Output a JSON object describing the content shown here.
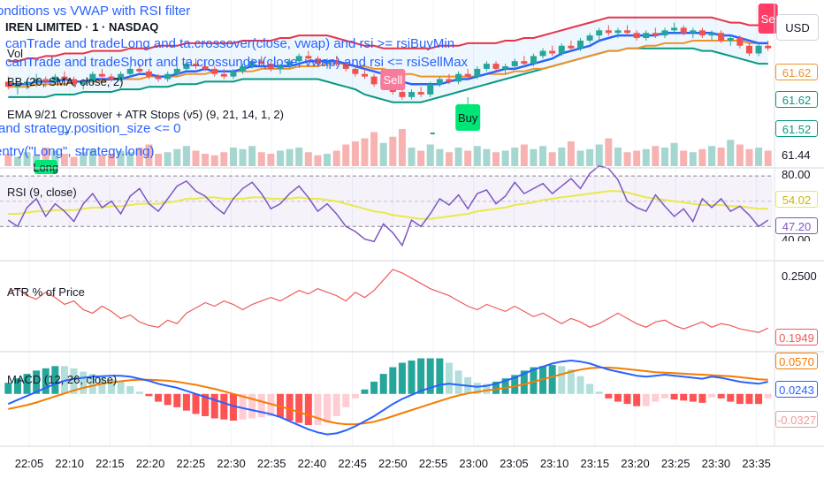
{
  "symbol_title": "IREN LIMITED · 1 · NASDAQ",
  "vol_label": "Vol",
  "currency": "USD",
  "overlay_lines": [
    "onditions vs VWAP with RSI filter",
    "canTrade and tradeLong  and ta.crossover(close, vwap) and rsi >= rsiBuyMin",
    "canTrade and tradeShort and ta.crossunder(close, vwap) and rsi <= rsiSellMax",
    "and strategy.position_size <= 0",
    "entry(\"Long\", strategy.long)"
  ],
  "indicators": {
    "bb": "BB (20, SMA, close, 2)",
    "ema": "EMA 9/21 Crossover + ATR Stops (v5) (9, 21, 14, 1, 2)",
    "rsi": "RSI (9, close)",
    "atr": "ATR % of Price",
    "macd": "MACD (12, 26, close)"
  },
  "signals": {
    "buy": "Buy",
    "sell1": "Sell",
    "sell2": "Se",
    "long": "Long"
  },
  "colors": {
    "bb_upper": "#e5344a",
    "bb_lower": "#089981",
    "bb_basis": "#2962ff",
    "ema_slow": "#f09228",
    "up": "#26a69a",
    "down": "#ef5350",
    "rsi": "#7e57c2",
    "rsi_ma": "#e8ea4c",
    "atr": "#f05a5a",
    "macd": "#2962ff",
    "signal": "#f57c00"
  },
  "price_panel": {
    "range": [
      61.4,
      61.82
    ],
    "labels": [
      "61.62",
      "61.62",
      "61.52",
      "61.44"
    ],
    "label_colors": [
      "#f09228",
      "#089981",
      "#089981",
      "#131722"
    ],
    "candles": [
      [
        61.55,
        61.57,
        61.52,
        61.53
      ],
      [
        61.53,
        61.55,
        61.5,
        61.54
      ],
      [
        61.54,
        61.56,
        61.52,
        61.55
      ],
      [
        61.55,
        61.58,
        61.53,
        61.56
      ],
      [
        61.56,
        61.57,
        61.53,
        61.55
      ],
      [
        61.55,
        61.58,
        61.54,
        61.57
      ],
      [
        61.57,
        61.59,
        61.55,
        61.56
      ],
      [
        61.56,
        61.57,
        61.53,
        61.54
      ],
      [
        61.54,
        61.56,
        61.52,
        61.55
      ],
      [
        61.55,
        61.59,
        61.54,
        61.58
      ],
      [
        61.58,
        61.6,
        61.56,
        61.57
      ],
      [
        61.57,
        61.58,
        61.55,
        61.56
      ],
      [
        61.56,
        61.59,
        61.55,
        61.58
      ],
      [
        61.58,
        61.61,
        61.57,
        61.6
      ],
      [
        61.6,
        61.62,
        61.58,
        61.59
      ],
      [
        61.59,
        61.6,
        61.56,
        61.57
      ],
      [
        61.57,
        61.58,
        61.55,
        61.56
      ],
      [
        61.56,
        61.59,
        61.55,
        61.58
      ],
      [
        61.58,
        61.61,
        61.57,
        61.6
      ],
      [
        61.6,
        61.63,
        61.59,
        61.62
      ],
      [
        61.62,
        61.64,
        61.6,
        61.61
      ],
      [
        61.61,
        61.63,
        61.59,
        61.6
      ],
      [
        61.6,
        61.61,
        61.57,
        61.58
      ],
      [
        61.58,
        61.6,
        61.56,
        61.57
      ],
      [
        61.57,
        61.6,
        61.56,
        61.59
      ],
      [
        61.59,
        61.62,
        61.58,
        61.61
      ],
      [
        61.61,
        61.64,
        61.6,
        61.63
      ],
      [
        61.63,
        61.65,
        61.61,
        61.62
      ],
      [
        61.62,
        61.63,
        61.59,
        61.6
      ],
      [
        61.6,
        61.62,
        61.58,
        61.61
      ],
      [
        61.61,
        61.64,
        61.6,
        61.63
      ],
      [
        61.63,
        61.66,
        61.62,
        61.65
      ],
      [
        61.65,
        61.67,
        61.63,
        61.64
      ],
      [
        61.64,
        61.65,
        61.61,
        61.62
      ],
      [
        61.62,
        61.64,
        61.6,
        61.63
      ],
      [
        61.63,
        61.65,
        61.61,
        61.62
      ],
      [
        61.62,
        61.63,
        61.59,
        61.6
      ],
      [
        61.6,
        61.61,
        61.57,
        61.58
      ],
      [
        61.58,
        61.6,
        61.56,
        61.57
      ],
      [
        61.57,
        61.58,
        61.53,
        61.54
      ],
      [
        61.54,
        61.56,
        61.52,
        61.55
      ],
      [
        61.55,
        61.56,
        61.5,
        61.51
      ],
      [
        61.51,
        61.53,
        61.48,
        61.49
      ],
      [
        61.49,
        61.52,
        61.48,
        61.51
      ],
      [
        61.51,
        61.53,
        61.49,
        61.5
      ],
      [
        61.5,
        61.55,
        61.49,
        61.54
      ],
      [
        61.54,
        61.57,
        61.53,
        61.56
      ],
      [
        61.56,
        61.58,
        61.54,
        61.55
      ],
      [
        61.55,
        61.59,
        61.54,
        61.58
      ],
      [
        61.58,
        61.6,
        61.56,
        61.57
      ],
      [
        61.57,
        61.61,
        61.56,
        61.6
      ],
      [
        61.6,
        61.63,
        61.59,
        61.62
      ],
      [
        61.62,
        61.63,
        61.59,
        61.6
      ],
      [
        61.6,
        61.62,
        61.58,
        61.61
      ],
      [
        61.61,
        61.64,
        61.6,
        61.63
      ],
      [
        61.63,
        61.65,
        61.61,
        61.62
      ],
      [
        61.62,
        61.66,
        61.61,
        61.65
      ],
      [
        61.65,
        61.68,
        61.64,
        61.67
      ],
      [
        61.67,
        61.69,
        61.65,
        61.66
      ],
      [
        61.66,
        61.7,
        61.65,
        61.69
      ],
      [
        61.69,
        61.71,
        61.67,
        61.68
      ],
      [
        61.68,
        61.72,
        61.67,
        61.71
      ],
      [
        61.71,
        61.74,
        61.7,
        61.73
      ],
      [
        61.73,
        61.76,
        61.71,
        61.75
      ],
      [
        61.75,
        61.77,
        61.73,
        61.74
      ],
      [
        61.74,
        61.76,
        61.72,
        61.75
      ],
      [
        61.75,
        61.77,
        61.73,
        61.74
      ],
      [
        61.74,
        61.75,
        61.71,
        61.72
      ],
      [
        61.72,
        61.75,
        61.71,
        61.74
      ],
      [
        61.74,
        61.76,
        61.72,
        61.73
      ],
      [
        61.73,
        61.76,
        61.72,
        61.75
      ],
      [
        61.75,
        61.78,
        61.74,
        61.76
      ],
      [
        61.76,
        61.77,
        61.73,
        61.74
      ],
      [
        61.74,
        61.76,
        61.72,
        61.75
      ],
      [
        61.75,
        61.76,
        61.72,
        61.73
      ],
      [
        61.73,
        61.75,
        61.71,
        61.74
      ],
      [
        61.74,
        61.75,
        61.7,
        61.71
      ],
      [
        61.71,
        61.73,
        61.69,
        61.72
      ],
      [
        61.72,
        61.73,
        61.68,
        61.69
      ],
      [
        61.69,
        61.7,
        61.65,
        61.66
      ],
      [
        61.66,
        61.7,
        61.65,
        61.69
      ],
      [
        61.69,
        61.71,
        61.67,
        61.68
      ]
    ],
    "bb_upper": [
      61.63,
      61.63,
      61.64,
      61.64,
      61.65,
      61.65,
      61.66,
      61.66,
      61.66,
      61.67,
      61.67,
      61.67,
      61.67,
      61.68,
      61.68,
      61.68,
      61.69,
      61.69,
      61.69,
      61.7,
      61.7,
      61.7,
      61.7,
      61.7,
      61.7,
      61.71,
      61.71,
      61.71,
      61.71,
      61.72,
      61.72,
      61.73,
      61.73,
      61.73,
      61.73,
      61.72,
      61.71,
      61.7,
      61.69,
      61.69,
      61.68,
      61.68,
      61.68,
      61.68,
      61.68,
      61.68,
      61.69,
      61.69,
      61.69,
      61.7,
      61.7,
      61.7,
      61.7,
      61.71,
      61.71,
      61.72,
      61.72,
      61.73,
      61.74,
      61.75,
      61.76,
      61.77,
      61.78,
      61.79,
      61.8,
      61.8,
      61.8,
      61.8,
      61.8,
      61.8,
      61.8,
      61.8,
      61.8,
      61.8,
      61.8,
      61.8,
      61.79,
      61.78,
      61.78,
      61.77,
      61.77,
      61.77
    ],
    "bb_lower": [
      61.49,
      61.49,
      61.49,
      61.49,
      61.49,
      61.5,
      61.5,
      61.5,
      61.51,
      61.51,
      61.51,
      61.51,
      61.52,
      61.52,
      61.52,
      61.53,
      61.53,
      61.53,
      61.54,
      61.54,
      61.54,
      61.55,
      61.55,
      61.55,
      61.55,
      61.56,
      61.56,
      61.56,
      61.56,
      61.56,
      61.56,
      61.56,
      61.56,
      61.56,
      61.55,
      61.54,
      61.53,
      61.52,
      61.5,
      61.49,
      61.48,
      61.47,
      61.47,
      61.47,
      61.47,
      61.48,
      61.49,
      61.5,
      61.51,
      61.52,
      61.53,
      61.54,
      61.55,
      61.56,
      61.57,
      61.58,
      61.59,
      61.6,
      61.61,
      61.62,
      61.63,
      61.64,
      61.65,
      61.66,
      61.67,
      61.67,
      61.68,
      61.68,
      61.68,
      61.68,
      61.68,
      61.68,
      61.68,
      61.68,
      61.67,
      61.67,
      61.66,
      61.65,
      61.64,
      61.63,
      61.62,
      61.62
    ],
    "ema_fast": [
      61.54,
      61.54,
      61.54,
      61.55,
      61.55,
      61.55,
      61.56,
      61.55,
      61.55,
      61.56,
      61.56,
      61.56,
      61.56,
      61.57,
      61.58,
      61.58,
      61.57,
      61.57,
      61.58,
      61.59,
      61.59,
      61.6,
      61.59,
      61.59,
      61.59,
      61.6,
      61.61,
      61.61,
      61.61,
      61.61,
      61.61,
      61.62,
      61.63,
      61.63,
      61.63,
      61.63,
      61.62,
      61.61,
      61.6,
      61.59,
      61.58,
      61.57,
      61.55,
      61.54,
      61.54,
      61.54,
      61.54,
      61.55,
      61.56,
      61.56,
      61.57,
      61.58,
      61.59,
      61.6,
      61.6,
      61.61,
      61.62,
      61.63,
      61.64,
      61.66,
      61.67,
      61.68,
      61.69,
      61.71,
      61.72,
      61.73,
      61.73,
      61.73,
      61.73,
      61.73,
      61.74,
      61.74,
      61.74,
      61.74,
      61.74,
      61.74,
      61.73,
      61.73,
      61.72,
      61.71,
      61.7,
      61.7
    ],
    "ema_slow": [
      61.53,
      61.53,
      61.53,
      61.54,
      61.54,
      61.54,
      61.54,
      61.55,
      61.55,
      61.55,
      61.55,
      61.56,
      61.56,
      61.56,
      61.56,
      61.57,
      61.57,
      61.57,
      61.57,
      61.58,
      61.58,
      61.58,
      61.59,
      61.59,
      61.59,
      61.59,
      61.59,
      61.6,
      61.6,
      61.6,
      61.6,
      61.61,
      61.61,
      61.61,
      61.62,
      61.62,
      61.62,
      61.61,
      61.61,
      61.6,
      61.6,
      61.59,
      61.58,
      61.58,
      61.57,
      61.57,
      61.57,
      61.57,
      61.57,
      61.57,
      61.57,
      61.58,
      61.58,
      61.58,
      61.59,
      61.59,
      61.6,
      61.6,
      61.61,
      61.62,
      61.63,
      61.64,
      61.65,
      61.66,
      61.67,
      61.67,
      61.68,
      61.68,
      61.69,
      61.69,
      61.7,
      61.7,
      61.7,
      61.71,
      61.71,
      61.71,
      61.71,
      61.71,
      61.71,
      61.7,
      61.7,
      61.7
    ],
    "volumes": [
      8,
      6,
      9,
      7,
      12,
      10,
      8,
      6,
      9,
      11,
      7,
      8,
      10,
      9,
      12,
      14,
      8,
      9,
      11,
      13,
      10,
      8,
      7,
      9,
      12,
      11,
      13,
      9,
      8,
      10,
      11,
      12,
      9,
      7,
      8,
      10,
      14,
      16,
      18,
      22,
      15,
      19,
      24,
      12,
      10,
      14,
      11,
      9,
      12,
      10,
      13,
      11,
      9,
      10,
      12,
      14,
      11,
      13,
      9,
      12,
      16,
      10,
      11,
      14,
      18,
      12,
      9,
      10,
      11,
      13,
      12,
      15,
      10,
      9,
      11,
      13,
      12,
      17,
      14,
      11,
      12,
      10
    ]
  },
  "rsi_panel": {
    "range": [
      15,
      85
    ],
    "upper_label": "80.00",
    "lower_label": "40.00",
    "levels": [
      "54.02",
      "47.20"
    ],
    "values": [
      45,
      40,
      55,
      62,
      48,
      58,
      52,
      44,
      58,
      66,
      55,
      60,
      50,
      64,
      70,
      58,
      52,
      62,
      72,
      76,
      68,
      64,
      56,
      50,
      62,
      70,
      75,
      66,
      54,
      58,
      66,
      72,
      63,
      52,
      58,
      50,
      40,
      36,
      30,
      28,
      42,
      35,
      25,
      45,
      40,
      50,
      62,
      57,
      65,
      54,
      66,
      69,
      58,
      64,
      75,
      66,
      70,
      74,
      66,
      72,
      78,
      70,
      82,
      88,
      86,
      77,
      60,
      55,
      52,
      65,
      56,
      48,
      54,
      44,
      62,
      55,
      62,
      52,
      56,
      49,
      40,
      45
    ],
    "ma": [
      50,
      50,
      51,
      52,
      52,
      53,
      53,
      53,
      54,
      55,
      55,
      56,
      56,
      57,
      58,
      58,
      58,
      59,
      60,
      62,
      62,
      63,
      63,
      62,
      62,
      62,
      63,
      63,
      62,
      62,
      62,
      63,
      62,
      62,
      61,
      60,
      58,
      56,
      54,
      52,
      51,
      49,
      48,
      47,
      46,
      46,
      47,
      48,
      49,
      50,
      52,
      53,
      54,
      55,
      57,
      58,
      59,
      61,
      62,
      63,
      64,
      65,
      66,
      67,
      68,
      68,
      67,
      65,
      63,
      62,
      61,
      60,
      59,
      58,
      57,
      57,
      57,
      56,
      56,
      55,
      54,
      54
    ]
  },
  "atr_panel": {
    "range": [
      0.17,
      0.27
    ],
    "top_label": "0.2500",
    "last_label": "0.1949",
    "values": [
      0.236,
      0.24,
      0.232,
      0.228,
      0.236,
      0.23,
      0.222,
      0.226,
      0.216,
      0.212,
      0.22,
      0.214,
      0.206,
      0.21,
      0.202,
      0.198,
      0.196,
      0.204,
      0.2,
      0.212,
      0.218,
      0.224,
      0.22,
      0.226,
      0.222,
      0.216,
      0.222,
      0.226,
      0.23,
      0.226,
      0.232,
      0.238,
      0.234,
      0.24,
      0.236,
      0.232,
      0.226,
      0.236,
      0.23,
      0.238,
      0.25,
      0.262,
      0.258,
      0.252,
      0.246,
      0.24,
      0.236,
      0.232,
      0.226,
      0.22,
      0.216,
      0.222,
      0.218,
      0.214,
      0.22,
      0.214,
      0.208,
      0.212,
      0.206,
      0.2,
      0.206,
      0.202,
      0.196,
      0.2,
      0.206,
      0.212,
      0.206,
      0.2,
      0.196,
      0.202,
      0.204,
      0.198,
      0.194,
      0.198,
      0.202,
      0.196,
      0.2,
      0.198,
      0.194,
      0.192,
      0.19,
      0.195
    ]
  },
  "macd_panel": {
    "range": [
      -0.1,
      0.08
    ],
    "labels": [
      "0.0570",
      "0.0243",
      "-0.0327"
    ],
    "label_colors": [
      "#f57c00",
      "#2962ff",
      "#ef9a9a"
    ],
    "macd": [
      -0.02,
      -0.012,
      -0.004,
      0.004,
      0.012,
      0.02,
      0.026,
      0.03,
      0.032,
      0.034,
      0.035,
      0.036,
      0.036,
      0.034,
      0.03,
      0.026,
      0.02,
      0.016,
      0.012,
      0.006,
      0.0,
      -0.006,
      -0.012,
      -0.018,
      -0.024,
      -0.028,
      -0.032,
      -0.036,
      -0.04,
      -0.046,
      -0.054,
      -0.062,
      -0.07,
      -0.076,
      -0.08,
      -0.078,
      -0.072,
      -0.064,
      -0.054,
      -0.044,
      -0.032,
      -0.02,
      -0.01,
      -0.002,
      0.006,
      0.012,
      0.018,
      0.02,
      0.018,
      0.016,
      0.014,
      0.016,
      0.02,
      0.026,
      0.032,
      0.04,
      0.048,
      0.054,
      0.06,
      0.064,
      0.066,
      0.064,
      0.06,
      0.054,
      0.048,
      0.044,
      0.04,
      0.036,
      0.034,
      0.036,
      0.038,
      0.036,
      0.034,
      0.032,
      0.03,
      0.034,
      0.032,
      0.028,
      0.024,
      0.022,
      0.02,
      0.024
    ],
    "signal": [
      -0.03,
      -0.026,
      -0.022,
      -0.017,
      -0.011,
      -0.005,
      0.001,
      0.007,
      0.012,
      0.016,
      0.02,
      0.023,
      0.025,
      0.027,
      0.028,
      0.028,
      0.027,
      0.026,
      0.024,
      0.021,
      0.018,
      0.014,
      0.01,
      0.005,
      0.0,
      -0.005,
      -0.01,
      -0.015,
      -0.02,
      -0.025,
      -0.03,
      -0.036,
      -0.042,
      -0.048,
      -0.054,
      -0.058,
      -0.06,
      -0.06,
      -0.058,
      -0.055,
      -0.05,
      -0.044,
      -0.038,
      -0.032,
      -0.026,
      -0.02,
      -0.014,
      -0.008,
      -0.003,
      0.001,
      0.004,
      0.007,
      0.009,
      0.012,
      0.015,
      0.019,
      0.024,
      0.029,
      0.034,
      0.039,
      0.044,
      0.048,
      0.051,
      0.052,
      0.052,
      0.051,
      0.049,
      0.047,
      0.045,
      0.043,
      0.042,
      0.041,
      0.04,
      0.039,
      0.038,
      0.037,
      0.036,
      0.035,
      0.033,
      0.031,
      0.029,
      0.028
    ]
  },
  "x_ticks": [
    "22:05",
    "22:10",
    "22:15",
    "22:20",
    "22:25",
    "22:30",
    "22:35",
    "22:40",
    "22:45",
    "22:50",
    "22:55",
    "23:00",
    "23:05",
    "23:10",
    "23:15",
    "23:20",
    "23:25",
    "23:30",
    "23:35"
  ]
}
